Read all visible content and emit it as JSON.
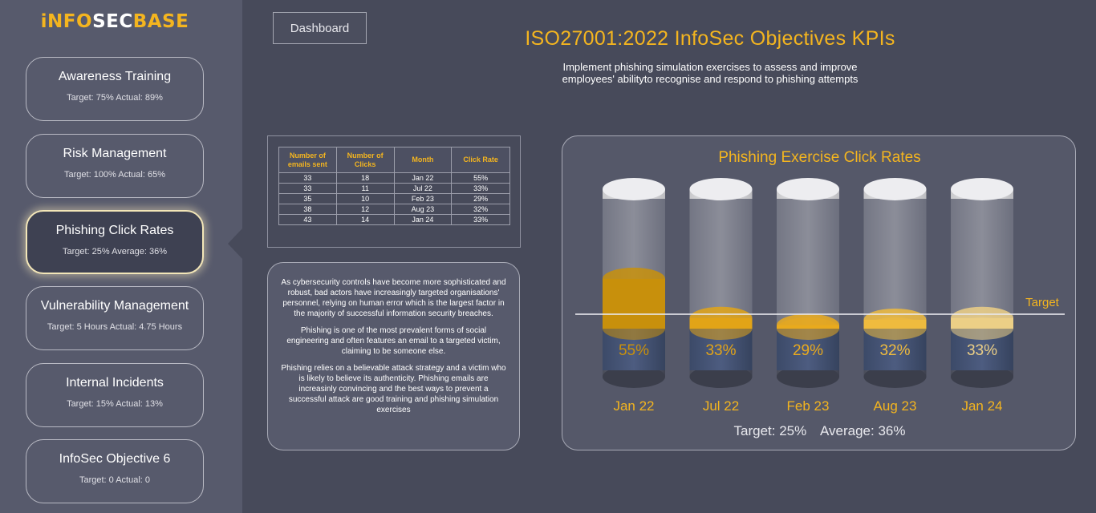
{
  "brand": {
    "part1": "iNFO",
    "part2": "SEC",
    "part3": "BASE"
  },
  "sidebar": {
    "items": [
      {
        "title": "Awareness Training",
        "subtitle": "Target: 75%  Actual: 89%"
      },
      {
        "title": "Risk Management",
        "subtitle": "Target: 100% Actual: 65%"
      },
      {
        "title": "Phishing Click Rates",
        "subtitle": "Target: 25%  Average: 36%"
      },
      {
        "title": "Vulnerability Management",
        "subtitle": "Target: 5 Hours  Actual: 4.75 Hours"
      },
      {
        "title": "Internal Incidents",
        "subtitle": "Target: 15%  Actual: 13%"
      },
      {
        "title": "InfoSec Objective 6",
        "subtitle": "Target: 0      Actual: 0"
      }
    ],
    "active_index": 2
  },
  "header": {
    "dashboard_button": "Dashboard",
    "title": "ISO27001:2022 InfoSec Objectives KPIs",
    "subtitle_line1": "Implement phishing simulation exercises to assess and improve",
    "subtitle_line2": "employees' abilityto recognise and respond to phishing attempts"
  },
  "table": {
    "headers": [
      "Number of emails sent",
      "Number of Clicks",
      "Month",
      "Click Rate"
    ],
    "rows": [
      [
        "33",
        "18",
        "Jan 22",
        "55%"
      ],
      [
        "33",
        "11",
        "Jul 22",
        "33%"
      ],
      [
        "35",
        "10",
        "Feb 23",
        "29%"
      ],
      [
        "38",
        "12",
        "Aug 23",
        "32%"
      ],
      [
        "43",
        "14",
        "Jan 24",
        "33%"
      ]
    ]
  },
  "description": {
    "p1": "As cybersecurity controls have become more sophisticated and robust, bad actors have increasingly targeted organisations' personnel, relying on human error which is the largest factor in the majority of successful information security breaches.",
    "p2": "Phishing is one of the most prevalent forms of social engineering and often features an email to a targeted victim, claiming to be someone else.",
    "p3": "Phishing relies on a believable attack strategy and a victim who is likely to believe its authenticity. Phishing emails are increasinly convincing and the best ways to prevent a successful attack are good training and phishing simulation exercises"
  },
  "chart_data": {
    "type": "bar",
    "title": "Phishing Exercise Click Rates",
    "categories": [
      "Jan 22",
      "Jul 22",
      "Feb 23",
      "Aug 23",
      "Jan 24"
    ],
    "values": [
      55,
      33,
      29,
      32,
      33
    ],
    "value_labels": [
      "55%",
      "33%",
      "29%",
      "32%",
      "33%"
    ],
    "ylim": [
      0,
      100
    ],
    "target": 25,
    "target_label": "Target",
    "colors": [
      "#c8900c",
      "#e2a418",
      "#e9aa1e",
      "#efbb3e",
      "#eccf86"
    ],
    "footer_target": "Target: 25%",
    "footer_average": "Average: 36%"
  }
}
